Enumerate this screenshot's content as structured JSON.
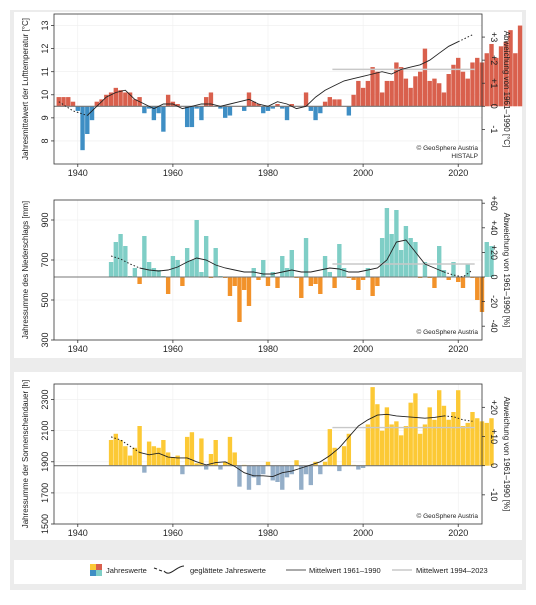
{
  "chart_data": [
    {
      "type": "bar",
      "ylabel": "Jahresmittelwert der Lufttemperatur [°C]",
      "ylabel_right": "Abweichung von 1961–1990 [°C]",
      "xlim": [
        1935,
        2025
      ],
      "ylim": [
        7,
        13.5
      ],
      "x_ticks": [
        "1940",
        "1960",
        "1980",
        "2000",
        "2020"
      ],
      "y_ticks": [
        "8",
        "9",
        "10",
        "11",
        "12",
        "13"
      ],
      "y_right_ticks": [
        "-1",
        "0",
        "+1",
        "+2",
        "+3"
      ],
      "reference_1961_1990": 9.5,
      "mean_1994_2023": 11.1,
      "credit": [
        "© GeoSphere Austria",
        "HISTALP"
      ],
      "colors": {
        "above": "#d9604d",
        "below": "#3e8ec4"
      },
      "start_year": 1936,
      "values": [
        9.9,
        9.9,
        9.9,
        9.7,
        9.3,
        7.6,
        8.3,
        8.9,
        9.7,
        9.8,
        10.0,
        10.1,
        10.3,
        10.2,
        10.1,
        10.1,
        9.8,
        9.9,
        9.2,
        9.4,
        8.9,
        9.2,
        8.4,
        10.0,
        9.7,
        9.6,
        9.5,
        8.6,
        8.6,
        9.4,
        8.9,
        9.9,
        10.1,
        9.5,
        9.4,
        9.0,
        9.1,
        9.5,
        9.5,
        9.3,
        10.1,
        9.7,
        9.6,
        9.2,
        9.3,
        9.4,
        9.6,
        9.4,
        8.9,
        9.6,
        9.5,
        9.5,
        10.1,
        9.3,
        8.9,
        9.2,
        9.7,
        9.9,
        9.8,
        9.8,
        9.5,
        9.1,
        10.0,
        10.6,
        10.3,
        10.6,
        11.2,
        11.0,
        10.1,
        10.6,
        10.6,
        11.4,
        11.2,
        10.7,
        10.3,
        10.8,
        11.0,
        12.0,
        10.6,
        10.7,
        10.5,
        10.1,
        10.9,
        11.3,
        11.6,
        11.0,
        10.7,
        11.4,
        11.6,
        11.4,
        11.8,
        12.2,
        11.6,
        12.1,
        12.3,
        12.8,
        11.8,
        13.0
      ],
      "smoothed_dotted": [
        [
          1936,
          9.7
        ],
        [
          1939,
          9.3
        ],
        [
          1942,
          9.1
        ]
      ],
      "smoothed": [
        [
          1942,
          9.1
        ],
        [
          1944,
          9.5
        ],
        [
          1946,
          9.9
        ],
        [
          1948,
          10.1
        ],
        [
          1950,
          10.2
        ],
        [
          1952,
          9.8
        ],
        [
          1954,
          9.6
        ],
        [
          1956,
          9.4
        ],
        [
          1958,
          9.6
        ],
        [
          1960,
          9.6
        ],
        [
          1962,
          9.4
        ],
        [
          1964,
          9.5
        ],
        [
          1966,
          9.6
        ],
        [
          1968,
          9.6
        ],
        [
          1970,
          9.5
        ],
        [
          1972,
          9.6
        ],
        [
          1974,
          9.7
        ],
        [
          1976,
          9.8
        ],
        [
          1978,
          9.6
        ],
        [
          1980,
          9.5
        ],
        [
          1982,
          9.7
        ],
        [
          1984,
          9.6
        ],
        [
          1986,
          9.4
        ],
        [
          1988,
          9.5
        ],
        [
          1990,
          9.9
        ],
        [
          1992,
          10.2
        ],
        [
          1994,
          10.4
        ],
        [
          1996,
          10.6
        ],
        [
          1998,
          10.7
        ],
        [
          2000,
          10.8
        ],
        [
          2002,
          10.9
        ],
        [
          2004,
          11.0
        ],
        [
          2006,
          10.9
        ],
        [
          2008,
          11.1
        ],
        [
          2010,
          11.2
        ],
        [
          2012,
          11.3
        ],
        [
          2014,
          11.5
        ],
        [
          2016,
          11.8
        ],
        [
          2018,
          12.1
        ],
        [
          2020,
          12.3
        ]
      ],
      "smoothed_tail": [
        [
          2020,
          12.3
        ],
        [
          2022,
          12.5
        ],
        [
          2023,
          12.6
        ]
      ]
    },
    {
      "type": "bar",
      "ylabel": "Jahressumme des Niederschlags [mm]",
      "ylabel_right": "Abweichung von 1961–1990 [%]",
      "xlim": [
        1935,
        2025
      ],
      "ylim": [
        300,
        1000
      ],
      "x_ticks": [
        "1940",
        "1960",
        "1980",
        "2000",
        "2020"
      ],
      "y_ticks": [
        "300",
        "500",
        "700",
        "900"
      ],
      "y_right_ticks": [
        "-40",
        "-20",
        "0",
        "+20",
        "+40",
        "+60"
      ],
      "reference_1961_1990": 615,
      "mean_1994_2023": 680,
      "credit": [
        "© GeoSphere Austria"
      ],
      "colors": {
        "above": "#7fcec6",
        "below": "#f2922a"
      },
      "start_year": 1947,
      "values": [
        690,
        790,
        830,
        770,
        620,
        660,
        580,
        820,
        690,
        660,
        650,
        620,
        530,
        720,
        700,
        570,
        760,
        700,
        900,
        640,
        820,
        610,
        760,
        620,
        610,
        520,
        570,
        390,
        550,
        470,
        660,
        600,
        700,
        570,
        640,
        560,
        720,
        660,
        750,
        610,
        510,
        810,
        570,
        580,
        530,
        720,
        640,
        560,
        780,
        660,
        610,
        600,
        550,
        600,
        660,
        520,
        570,
        810,
        960,
        830,
        950,
        750,
        870,
        810,
        790,
        610,
        690,
        610,
        560,
        770,
        650,
        600,
        690,
        590,
        560,
        680,
        610,
        500,
        440,
        790,
        770
      ],
      "smoothed_dotted": [
        [
          1947,
          720
        ],
        [
          1949,
          705
        ],
        [
          1951,
          680
        ],
        [
          1953,
          660
        ]
      ],
      "smoothed": [
        [
          1953,
          660
        ],
        [
          1955,
          650
        ],
        [
          1957,
          645
        ],
        [
          1959,
          650
        ],
        [
          1961,
          665
        ],
        [
          1963,
          690
        ],
        [
          1965,
          710
        ],
        [
          1967,
          700
        ],
        [
          1969,
          675
        ],
        [
          1971,
          660
        ],
        [
          1973,
          650
        ],
        [
          1975,
          640
        ],
        [
          1977,
          640
        ],
        [
          1979,
          630
        ],
        [
          1981,
          630
        ],
        [
          1983,
          640
        ],
        [
          1985,
          650
        ],
        [
          1987,
          640
        ],
        [
          1989,
          640
        ],
        [
          1991,
          650
        ],
        [
          1993,
          660
        ],
        [
          1995,
          655
        ],
        [
          1997,
          640
        ],
        [
          1999,
          640
        ],
        [
          2001,
          650
        ],
        [
          2003,
          660
        ],
        [
          2005,
          700
        ],
        [
          2007,
          790
        ],
        [
          2009,
          800
        ],
        [
          2011,
          740
        ],
        [
          2013,
          680
        ],
        [
          2015,
          660
        ],
        [
          2017,
          640
        ]
      ],
      "smoothed_tail": [
        [
          2017,
          640
        ],
        [
          2019,
          625
        ],
        [
          2021,
          615
        ],
        [
          2023,
          650
        ]
      ]
    },
    {
      "type": "bar",
      "ylabel": "Jahressumme der Sonnenscheindauer [h]",
      "ylabel_right": "Abweichung von 1961–1990 [%]",
      "xlim": [
        1935,
        2025
      ],
      "ylim": [
        1500,
        2400
      ],
      "x_ticks": [
        "1940",
        "1960",
        "1980",
        "2000",
        "2020"
      ],
      "y_ticks": [
        "1500",
        "1700",
        "1900",
        "2100",
        "2300"
      ],
      "y_right_ticks": [
        "-10",
        "0",
        "+10",
        "+20"
      ],
      "reference_1961_1990": 1875,
      "mean_1994_2023": 2120,
      "credit": [
        "© GeoSphere Austria"
      ],
      "colors": {
        "above": "#fcc935",
        "below": "#94aec8"
      },
      "start_year": 1947,
      "values": [
        2040,
        2080,
        2040,
        2000,
        1940,
        1990,
        2130,
        1830,
        2030,
        2000,
        1990,
        2040,
        1960,
        1930,
        1940,
        1820,
        2060,
        2090,
        1890,
        2050,
        1850,
        1950,
        2040,
        1850,
        1900,
        2060,
        1960,
        1740,
        1880,
        1720,
        1800,
        1750,
        1820,
        1900,
        1780,
        1770,
        1720,
        1800,
        1820,
        1910,
        1720,
        1820,
        1750,
        1900,
        1820,
        1900,
        2110,
        1990,
        1840,
        2000,
        2080,
        1880,
        1850,
        1860,
        2140,
        2380,
        2270,
        2100,
        2250,
        2140,
        2160,
        2070,
        2130,
        2280,
        2340,
        2080,
        2140,
        2250,
        2170,
        2360,
        2260,
        2170,
        2220,
        2360,
        2130,
        2150,
        2220,
        2180,
        2160,
        2150,
        2180
      ],
      "smoothed_dotted": [
        [
          1947,
          2060
        ],
        [
          1949,
          2040
        ],
        [
          1951,
          2000
        ],
        [
          1953,
          1960
        ]
      ],
      "smoothed": [
        [
          1953,
          1960
        ],
        [
          1955,
          1945
        ],
        [
          1957,
          1955
        ],
        [
          1959,
          1930
        ],
        [
          1961,
          1925
        ],
        [
          1963,
          1925
        ],
        [
          1965,
          1900
        ],
        [
          1967,
          1880
        ],
        [
          1969,
          1895
        ],
        [
          1971,
          1900
        ],
        [
          1973,
          1870
        ],
        [
          1975,
          1830
        ],
        [
          1977,
          1810
        ],
        [
          1979,
          1810
        ],
        [
          1981,
          1805
        ],
        [
          1983,
          1830
        ],
        [
          1985,
          1840
        ],
        [
          1987,
          1860
        ],
        [
          1989,
          1880
        ],
        [
          1991,
          1900
        ],
        [
          1993,
          1940
        ],
        [
          1995,
          1990
        ],
        [
          1997,
          2060
        ],
        [
          1999,
          2130
        ],
        [
          2001,
          2170
        ],
        [
          2003,
          2200
        ],
        [
          2005,
          2205
        ],
        [
          2007,
          2195
        ],
        [
          2009,
          2190
        ],
        [
          2011,
          2185
        ],
        [
          2013,
          2180
        ],
        [
          2015,
          2185
        ],
        [
          2017,
          2195
        ]
      ],
      "smoothed_tail": [
        [
          2017,
          2195
        ],
        [
          2019,
          2190
        ],
        [
          2021,
          2170
        ],
        [
          2023,
          2160
        ]
      ]
    }
  ],
  "legend": {
    "bars": "Jahreswerte",
    "smoothed": "geglättete Jahreswerte",
    "ref": "Mittelwert 1961–1990",
    "recent": "Mittelwert 1994–2023",
    "colors": {
      "ref": "#777777",
      "recent": "#c8c8c8",
      "smoothed": "#222222"
    }
  }
}
